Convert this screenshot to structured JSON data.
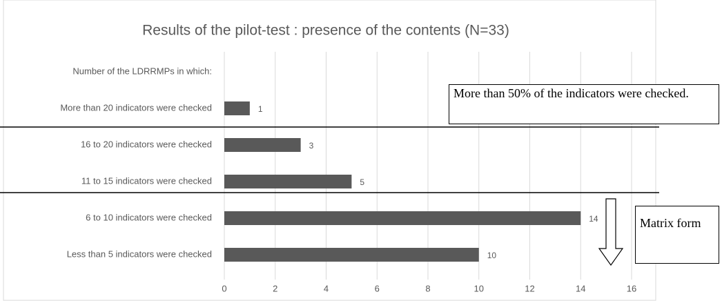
{
  "chart_data": {
    "type": "barh",
    "title": "Results of the pilot-test : presence of the contents (N=33)",
    "categories": [
      "Number of the LDRRMPs in which:",
      "More than 20 indicators were checked",
      "16 to 20 indicators were checked",
      "11 to 15 indicators were checked",
      "6 to 10 indicators were checked",
      "Less than 5 indicators were checked"
    ],
    "values": [
      null,
      1,
      3,
      5,
      14,
      10
    ],
    "color": "#595959",
    "xlim": [
      0,
      16
    ],
    "xticks": [
      0,
      2,
      4,
      6,
      8,
      10,
      12,
      14,
      16
    ],
    "grid": true,
    "annotations": [
      "More than 50% of the indicators were checked.",
      "Matrix form"
    ]
  }
}
